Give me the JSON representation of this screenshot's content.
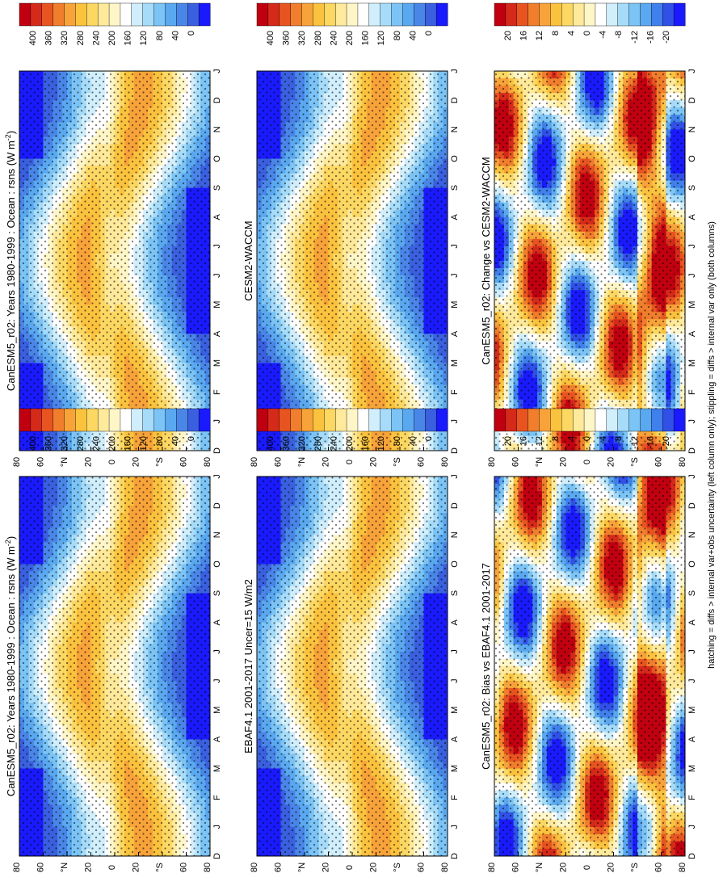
{
  "figure": {
    "footnote": "hatching = diffs > internal var+obs uncertainty (left column only); stippling = diffs > internal var only (both columns)",
    "time_axis": [
      "D",
      "J",
      "F",
      "M",
      "A",
      "M",
      "J",
      "J",
      "A",
      "S",
      "O",
      "N",
      "D",
      "J"
    ],
    "lat_axis": [
      "80",
      "60",
      "°N",
      "20",
      "0",
      "20",
      "°S",
      "60",
      "80"
    ]
  },
  "colors": {
    "absolute_scale": [
      "#1a1aff",
      "#3a60e0",
      "#4a86e8",
      "#5aa8f0",
      "#7cc4f6",
      "#a6dcfa",
      "#d0eefc",
      "#ffffff",
      "#fff6c8",
      "#ffe99a",
      "#fcd863",
      "#fbc23e",
      "#f8a33a",
      "#f07e2c",
      "#e85420",
      "#d52a1a",
      "#c00010"
    ],
    "difference_scale": [
      "#1a1aff",
      "#3050e8",
      "#4080ec",
      "#5aa8f0",
      "#7cc4f6",
      "#a6dcfa",
      "#d0eefc",
      "#ffffff",
      "#fff6c8",
      "#ffe99a",
      "#fcd863",
      "#fbc23e",
      "#f8a33a",
      "#f07e2c",
      "#e85420",
      "#d52a1a",
      "#c00010"
    ]
  },
  "colorbars": {
    "absolute_ticks": [
      "400",
      "360",
      "320",
      "280",
      "240",
      "200",
      "160",
      "120",
      "80",
      "40",
      "0"
    ],
    "difference_ticks": [
      "20",
      "16",
      "12",
      "8",
      "4",
      "0",
      "-4",
      "-8",
      "-12",
      "-16",
      "-20"
    ]
  },
  "chart_data": [
    {
      "type": "heatmap",
      "title": "CanESM5_r02: Years 1980-1999 : Ocean : rsns (W m",
      "title_superscript": "-2",
      "title_suffix": ")",
      "x": "month (D to J)",
      "y": "latitude (80°N to 80°S)",
      "value_range": [
        0,
        400
      ],
      "units": "W m-2",
      "pattern": "absolute"
    },
    {
      "type": "heatmap",
      "title": "EBAF4.1 2001-2017 Uncer=15 W/m2",
      "value_range": [
        0,
        400
      ],
      "units": "W m-2",
      "pattern": "absolute"
    },
    {
      "type": "heatmap",
      "title": "CanESM5_r02: Bias vs EBAF4.1 2001-2017",
      "value_range": [
        -20,
        20
      ],
      "units": "W m-2",
      "pattern": "difference"
    },
    {
      "type": "heatmap",
      "title": "CanESM5_r02: Years 1980-1999 : Ocean : rsns (W m",
      "title_superscript": "-2",
      "title_suffix": ")",
      "value_range": [
        0,
        400
      ],
      "units": "W m-2",
      "pattern": "absolute"
    },
    {
      "type": "heatmap",
      "title": "CESM2-WACCM",
      "value_range": [
        0,
        400
      ],
      "units": "W m-2",
      "pattern": "absolute"
    },
    {
      "type": "heatmap",
      "title": "CanESM5_r02: Change vs CESM2-WACCM",
      "value_range": [
        -20,
        20
      ],
      "units": "W m-2",
      "pattern": "difference"
    }
  ]
}
